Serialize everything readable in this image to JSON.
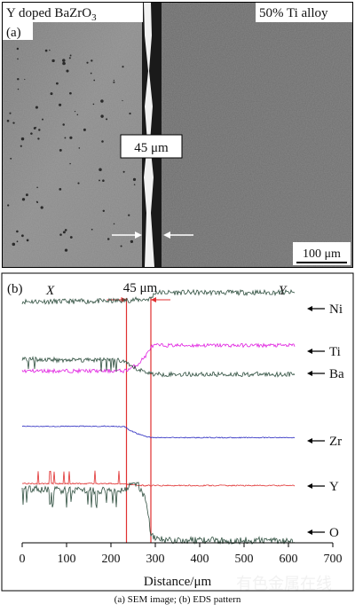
{
  "panel_a": {
    "label": "(a)",
    "left_material": "Y doped BaZrO",
    "left_material_sub": "3",
    "right_material": "50% Ti alloy",
    "thickness_label": "45 μm",
    "scale_bar": "100 μm"
  },
  "panel_b": {
    "label": "(b)",
    "x_marker": "X",
    "y_marker": "Y",
    "thickness_label": "45 μm"
  },
  "caption": "(a) SEM image; (b) EDS pattern",
  "watermark": "有色金属在线",
  "chart_data": {
    "type": "line",
    "xlabel": "Distance/μm",
    "ylabel": "",
    "xlim": [
      0,
      700
    ],
    "x_ticks": [
      0,
      100,
      200,
      300,
      400,
      500,
      600,
      700
    ],
    "vertical_lines": [
      235,
      290
    ],
    "series": [
      {
        "name": "Ni",
        "color": "#2f4f3f",
        "x": [
          0,
          100,
          200,
          230,
          240,
          260,
          280,
          290,
          300,
          400,
          500,
          615
        ],
        "values": [
          0.94,
          0.94,
          0.95,
          0.96,
          0.97,
          0.98,
          0.99,
          1.01,
          1.15,
          1.15,
          1.15,
          1.15
        ]
      },
      {
        "name": "Ti",
        "color": "#e020e0",
        "x": [
          0,
          100,
          200,
          230,
          240,
          260,
          280,
          290,
          300,
          400,
          500,
          615
        ],
        "values": [
          0.05,
          0.05,
          0.05,
          0.05,
          0.1,
          0.25,
          0.55,
          0.8,
          0.85,
          0.85,
          0.85,
          0.85
        ]
      },
      {
        "name": "Ba",
        "color": "#2f4f3f",
        "x": [
          0,
          100,
          200,
          230,
          240,
          260,
          280,
          290,
          300,
          400,
          500,
          615
        ],
        "values": [
          0.78,
          0.76,
          0.77,
          0.72,
          0.62,
          0.52,
          0.46,
          0.42,
          0.4,
          0.4,
          0.4,
          0.4
        ]
      },
      {
        "name": "Zr",
        "color": "#2a2ac0",
        "x": [
          0,
          100,
          200,
          230,
          240,
          260,
          280,
          290,
          300,
          400,
          500,
          615
        ],
        "values": [
          0.88,
          0.88,
          0.88,
          0.87,
          0.7,
          0.5,
          0.35,
          0.32,
          0.3,
          0.3,
          0.3,
          0.3
        ]
      },
      {
        "name": "Y",
        "color": "#e03030",
        "x": [
          0,
          100,
          200,
          230,
          240,
          260,
          280,
          290,
          300,
          400,
          500,
          615
        ],
        "values": [
          0.1,
          0.1,
          0.1,
          0.1,
          0.06,
          0.03,
          0.02,
          0.02,
          0.02,
          0.02,
          0.02,
          0.02
        ]
      },
      {
        "name": "O",
        "color": "#2f4f3f",
        "x": [
          0,
          100,
          200,
          230,
          240,
          260,
          280,
          290,
          300,
          400,
          500,
          615
        ],
        "values": [
          0.92,
          0.88,
          0.88,
          0.9,
          0.95,
          1.0,
          0.7,
          0.15,
          0.05,
          0.04,
          0.04,
          0.04
        ]
      }
    ]
  }
}
